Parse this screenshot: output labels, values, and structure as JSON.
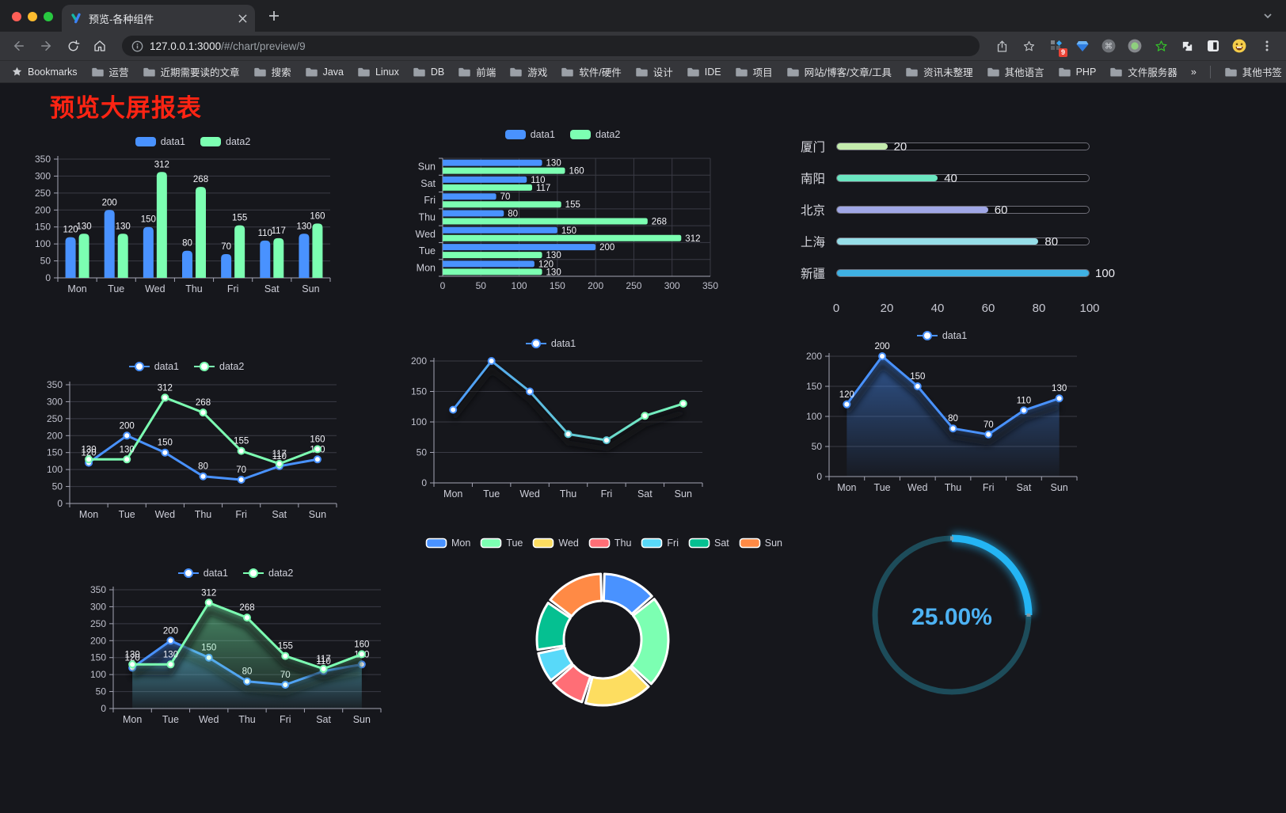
{
  "browser": {
    "tab_title": "预览-各种组件",
    "url_host": "127.0.0.1:3000",
    "url_path": "/#/chart/preview/9",
    "extension_badge": "9",
    "bookmarks_label": "Bookmarks",
    "bookmark_folders": [
      "运营",
      "近期需要读的文章",
      "搜索",
      "Java",
      "Linux",
      "DB",
      "前端",
      "游戏",
      "软件/硬件",
      "设计",
      "IDE",
      "项目",
      "网站/博客/文章/工具",
      "资讯未整理",
      "其他语言",
      "PHP",
      "文件服务器"
    ],
    "bookmarks_overflow": "»",
    "other_bookmarks_label": "其他书签"
  },
  "page": {
    "title": "预览大屏报表",
    "title_color": "#fe2413",
    "background": "#16171c"
  },
  "chart_data": [
    {
      "id": "c1",
      "name": "grouped-bar-chart",
      "type": "bar",
      "categories": [
        "Mon",
        "Tue",
        "Wed",
        "Thu",
        "Fri",
        "Sat",
        "Sun"
      ],
      "series": [
        {
          "name": "data1",
          "color": "#4992ff",
          "values": [
            120,
            200,
            150,
            80,
            70,
            110,
            130
          ]
        },
        {
          "name": "data2",
          "color": "#7cffb2",
          "values": [
            130,
            130,
            312,
            268,
            155,
            117,
            160
          ]
        }
      ],
      "ylim": [
        0,
        350
      ],
      "yticks": [
        0,
        50,
        100,
        150,
        200,
        250,
        300,
        350
      ],
      "value_labels": true,
      "legend": [
        "data1",
        "data2"
      ]
    },
    {
      "id": "c2",
      "name": "horizontal-bar-chart",
      "type": "hbar",
      "categories": [
        "Mon",
        "Tue",
        "Wed",
        "Thu",
        "Fri",
        "Sat",
        "Sun"
      ],
      "display_top_to_bottom": [
        "Sun",
        "Sat",
        "Fri",
        "Thu",
        "Wed",
        "Tue",
        "Mon"
      ],
      "series": [
        {
          "name": "data1",
          "color": "#4992ff",
          "values": [
            120,
            200,
            150,
            80,
            70,
            110,
            130
          ]
        },
        {
          "name": "data2",
          "color": "#7cffb2",
          "values": [
            130,
            130,
            312,
            268,
            155,
            117,
            160
          ]
        }
      ],
      "xlim": [
        0,
        350
      ],
      "xticks": [
        0,
        50,
        100,
        150,
        200,
        250,
        300,
        350
      ],
      "value_labels": true,
      "legend": [
        "data1",
        "data2"
      ]
    },
    {
      "id": "c3",
      "name": "progress-bar-list",
      "type": "progress",
      "max": 100,
      "rows": [
        {
          "label": "厦门",
          "value": 20,
          "color": "#c4ebad"
        },
        {
          "label": "南阳",
          "value": 40,
          "color": "#6be6c1"
        },
        {
          "label": "北京",
          "value": 60,
          "color": "#a0a7e6"
        },
        {
          "label": "上海",
          "value": 80,
          "color": "#96dee8"
        },
        {
          "label": "新疆",
          "value": 100,
          "color": "#3fb1e3"
        }
      ],
      "axis_ticks": [
        0,
        20,
        40,
        60,
        80,
        100
      ]
    },
    {
      "id": "c4",
      "name": "line-chart-two-series",
      "type": "line",
      "categories": [
        "Mon",
        "Tue",
        "Wed",
        "Thu",
        "Fri",
        "Sat",
        "Sun"
      ],
      "series": [
        {
          "name": "data1",
          "color": "#4992ff",
          "values": [
            120,
            200,
            150,
            80,
            70,
            110,
            130
          ]
        },
        {
          "name": "data2",
          "color": "#7cffb2",
          "values": [
            130,
            130,
            312,
            268,
            155,
            117,
            160
          ]
        }
      ],
      "ylim": [
        0,
        350
      ],
      "yticks": [
        0,
        50,
        100,
        150,
        200,
        250,
        300,
        350
      ],
      "value_labels": true,
      "legend": [
        "data1",
        "data2"
      ]
    },
    {
      "id": "c5",
      "name": "gradient-line-chart",
      "type": "line",
      "categories": [
        "Mon",
        "Tue",
        "Wed",
        "Thu",
        "Fri",
        "Sat",
        "Sun"
      ],
      "series": [
        {
          "name": "data1",
          "gradient": [
            "#4992ff",
            "#7cffb2"
          ],
          "values": [
            120,
            200,
            150,
            80,
            70,
            110,
            130
          ]
        }
      ],
      "ylim": [
        0,
        200
      ],
      "yticks": [
        0,
        50,
        100,
        150,
        200
      ],
      "value_labels": false,
      "shadow": true,
      "legend": [
        "data1"
      ]
    },
    {
      "id": "c6",
      "name": "area-line-chart",
      "type": "line",
      "categories": [
        "Mon",
        "Tue",
        "Wed",
        "Thu",
        "Fri",
        "Sat",
        "Sun"
      ],
      "series": [
        {
          "name": "data1",
          "color": "#4992ff",
          "area": true,
          "values": [
            120,
            200,
            150,
            80,
            70,
            110,
            130
          ]
        }
      ],
      "ylim": [
        0,
        200
      ],
      "yticks": [
        0,
        50,
        100,
        150,
        200
      ],
      "value_labels": true,
      "shadow": true,
      "legend": [
        "data1"
      ]
    },
    {
      "id": "c7",
      "name": "stacked-area-line-chart",
      "type": "line",
      "categories": [
        "Mon",
        "Tue",
        "Wed",
        "Thu",
        "Fri",
        "Sat",
        "Sun"
      ],
      "series": [
        {
          "name": "data1",
          "color": "#4992ff",
          "area": true,
          "values": [
            120,
            200,
            150,
            80,
            70,
            110,
            130
          ]
        },
        {
          "name": "data2",
          "color": "#7cffb2",
          "area": true,
          "values": [
            130,
            130,
            312,
            268,
            155,
            117,
            160
          ]
        }
      ],
      "ylim": [
        0,
        350
      ],
      "yticks": [
        0,
        50,
        100,
        150,
        200,
        250,
        300,
        350
      ],
      "value_labels": true,
      "shadow": true,
      "legend": [
        "data1",
        "data2"
      ]
    },
    {
      "id": "c8",
      "name": "donut-chart",
      "type": "pie",
      "inner_radius_ratio": 0.59,
      "items": [
        {
          "label": "Mon",
          "value": 120,
          "color": "#4992ff"
        },
        {
          "label": "Tue",
          "value": 200,
          "color": "#7cffb2"
        },
        {
          "label": "Wed",
          "value": 150,
          "color": "#fddd60"
        },
        {
          "label": "Thu",
          "value": 80,
          "color": "#ff6e76"
        },
        {
          "label": "Fri",
          "value": 70,
          "color": "#58d9f9"
        },
        {
          "label": "Sat",
          "value": 110,
          "color": "#05c091"
        },
        {
          "label": "Sun",
          "value": 130,
          "color": "#ff8a45"
        }
      ]
    },
    {
      "id": "c9",
      "name": "gauge-progress",
      "type": "gauge",
      "percent": 25,
      "label": "25.00%",
      "color": "#24b5f4",
      "track_color": "#1d4c5a",
      "text_color": "#4db2f3"
    }
  ]
}
